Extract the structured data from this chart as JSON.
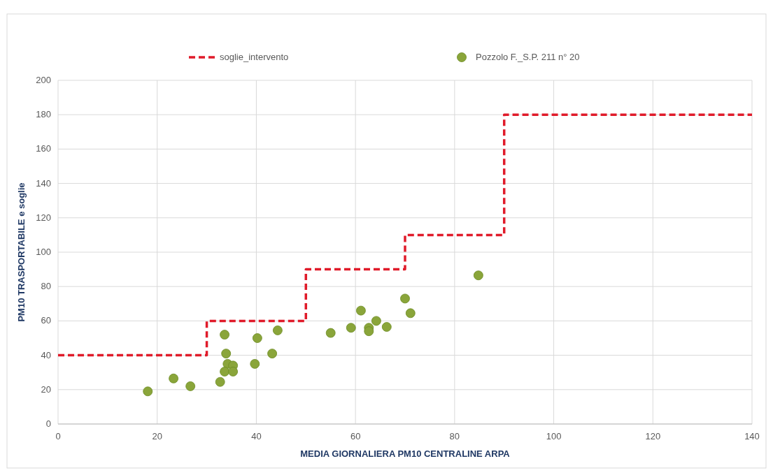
{
  "chart_data": {
    "type": "scatter",
    "xlabel": "MEDIA GIORNALIERA PM10 CENTRALINE ARPA",
    "ylabel": "PM10 TRASPORTABILE e soglie",
    "xlim": [
      0,
      140
    ],
    "xticks": [
      0,
      20,
      40,
      60,
      80,
      100,
      120,
      140
    ],
    "ylim": [
      0,
      200
    ],
    "yticks": [
      0,
      20,
      40,
      60,
      80,
      100,
      120,
      140,
      160,
      180,
      200
    ],
    "grid": true,
    "legend": "top",
    "series": [
      {
        "name": "soglie_intervento",
        "type": "step",
        "color": "#e01b2a",
        "line_style": "dashed",
        "x": [
          0,
          30,
          50,
          70,
          90,
          140
        ],
        "values": [
          40,
          60,
          90,
          110,
          180,
          180
        ]
      },
      {
        "name": "Pozzolo F._S.P. 211 n° 20",
        "color": "#8aa53a",
        "marker": "circle",
        "x": [
          18.1,
          23.3,
          26.7,
          32.7,
          33.6,
          33.9,
          34.2,
          33.6,
          35.3,
          35.3,
          39.7,
          40.2,
          43.2,
          44.3,
          55,
          59.1,
          61.1,
          62.7,
          62.7,
          64.2,
          66.3,
          70,
          71.1,
          84.8
        ],
        "values": [
          19,
          26.5,
          22,
          24.5,
          52,
          41,
          35,
          30.5,
          34,
          30.5,
          35,
          50,
          41,
          54.5,
          53,
          56,
          66,
          56,
          54,
          60,
          56.5,
          73,
          64.5,
          86.5
        ]
      }
    ]
  }
}
